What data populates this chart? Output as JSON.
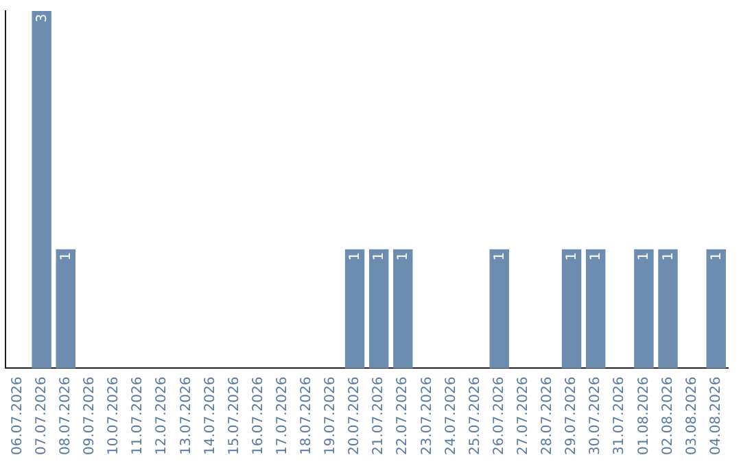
{
  "chart_data": {
    "type": "bar",
    "categories": [
      "06.07.2026",
      "07.07.2026",
      "08.07.2026",
      "09.07.2026",
      "10.07.2026",
      "11.07.2026",
      "12.07.2026",
      "13.07.2026",
      "14.07.2026",
      "15.07.2026",
      "16.07.2026",
      "17.07.2026",
      "18.07.2026",
      "19.07.2026",
      "20.07.2026",
      "21.07.2026",
      "22.07.2026",
      "23.07.2026",
      "24.07.2026",
      "25.07.2026",
      "26.07.2026",
      "27.07.2026",
      "28.07.2026",
      "29.07.2026",
      "30.07.2026",
      "31.07.2026",
      "01.08.2026",
      "02.08.2026",
      "03.08.2026",
      "04.08.2026"
    ],
    "values": [
      0,
      3,
      1,
      0,
      0,
      0,
      0,
      0,
      0,
      0,
      0,
      0,
      0,
      0,
      1,
      1,
      1,
      0,
      0,
      0,
      1,
      0,
      0,
      1,
      1,
      0,
      1,
      1,
      0,
      1
    ],
    "value_labels": [
      null,
      "3",
      "1",
      null,
      null,
      null,
      null,
      null,
      null,
      null,
      null,
      null,
      null,
      null,
      "1",
      "1",
      "1",
      null,
      null,
      null,
      "1",
      null,
      null,
      "1",
      "1",
      null,
      "1",
      "1",
      null,
      "1"
    ],
    "color": "#6c8db0",
    "tick_labels": "x",
    "grid": false,
    "legend": false
  }
}
